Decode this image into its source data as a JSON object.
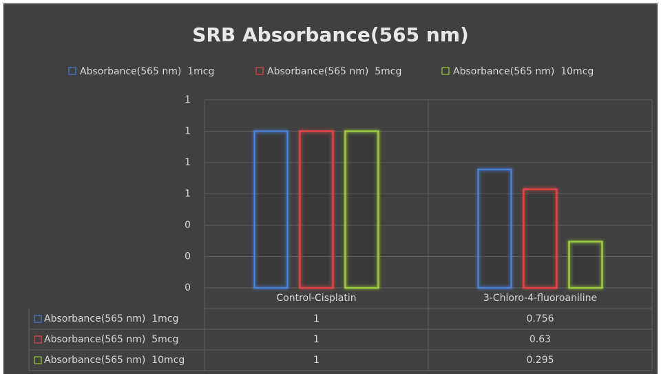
{
  "chart_data": {
    "type": "bar",
    "title": "SRB Absorbance(565 nm)",
    "categories": [
      "Control-Cisplatin",
      "3-Chloro-4-fluoroaniline"
    ],
    "series": [
      {
        "name": "Absorbance(565 nm)  1mcg",
        "color": "#4a7fd4",
        "values": [
          1,
          0.756
        ]
      },
      {
        "name": "Absorbance(565 nm)  5mcg",
        "color": "#e04545",
        "values": [
          1,
          0.63
        ]
      },
      {
        "name": "Absorbance(565 nm)  10mcg",
        "color": "#9ccc3a",
        "values": [
          1,
          0.295
        ]
      }
    ],
    "ylim": [
      0,
      1.2
    ],
    "yticks": [
      0,
      {
        "value": 0.2,
        "label": "0"
      },
      {
        "value": 0.4,
        "label": "0"
      },
      {
        "value": 0.6,
        "label": "1"
      },
      {
        "value": 0.8,
        "label": "1"
      },
      1,
      {
        "value": 1.2,
        "label": "1"
      }
    ],
    "grid": true,
    "legend": "top",
    "data_table": true
  }
}
